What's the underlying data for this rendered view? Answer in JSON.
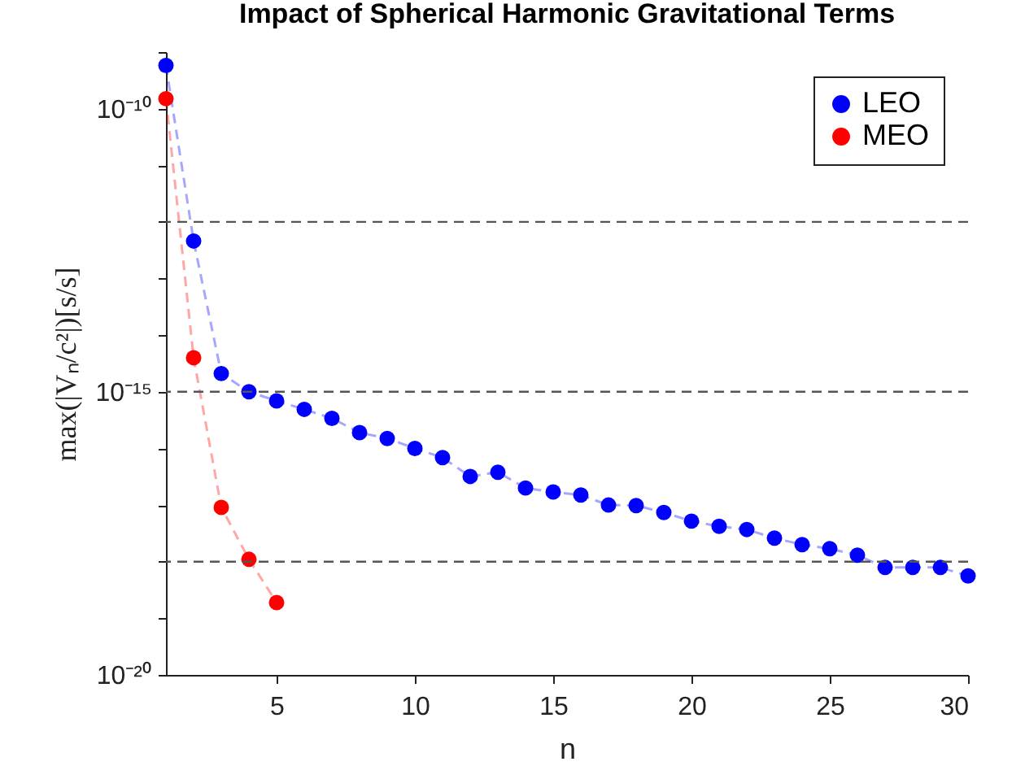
{
  "chart_data": {
    "type": "line",
    "title": "Impact of Spherical Harmonic Gravitational Terms",
    "xlabel": "n",
    "ylabel": "max(|Vₙ/c²|)[s/s]",
    "log": true,
    "marker": "circle",
    "line_style": "dashed",
    "legend": "top right",
    "grid": false,
    "xlim": [
      1,
      30
    ],
    "xticks": [
      5,
      10,
      15,
      20,
      25,
      30
    ],
    "ylim": [
      1e-20,
      1e-09
    ],
    "yticks": [
      {
        "value": 1e-20,
        "label": "10⁻²⁰"
      },
      {
        "value": 1e-19,
        "label": null
      },
      {
        "value": 1e-18,
        "label": null
      },
      {
        "value": 1e-17,
        "label": null
      },
      {
        "value": 1e-16,
        "label": null
      },
      {
        "value": 1e-15,
        "label": "10⁻¹⁵"
      },
      {
        "value": 1e-14,
        "label": null
      },
      {
        "value": 1e-13,
        "label": null
      },
      {
        "value": 1e-12,
        "label": null
      },
      {
        "value": 1e-11,
        "label": null
      },
      {
        "value": 1e-10,
        "label": "10⁻¹⁰"
      },
      {
        "value": 1e-09,
        "label": null
      }
    ],
    "ref_lines": [
      {
        "axis": "y",
        "value": 1e-12,
        "color": "#555555",
        "line_style": "dashed"
      },
      {
        "axis": "y",
        "value": 1e-15,
        "color": "#555555",
        "line_style": "dashed"
      },
      {
        "axis": "y",
        "value": 1e-18,
        "color": "#555555",
        "line_style": "dashed"
      }
    ],
    "series": [
      {
        "name": "LEO",
        "color": "#0000ff",
        "x": [
          1,
          2,
          3,
          4,
          5,
          6,
          7,
          8,
          9,
          10,
          11,
          12,
          13,
          14,
          15,
          16,
          17,
          18,
          19,
          20,
          21,
          22,
          23,
          24,
          25,
          26,
          27,
          28,
          29,
          30
        ],
        "values": [
          5.8e-10,
          4.6e-13,
          2.1e-15,
          1e-15,
          6.9e-16,
          4.9e-16,
          3.4e-16,
          1.9e-16,
          1.5e-16,
          1e-16,
          6.9e-17,
          3.2e-17,
          3.8e-17,
          2e-17,
          1.7e-17,
          1.5e-17,
          1e-17,
          9.8e-18,
          7.4e-18,
          5.2e-18,
          4.2e-18,
          3.7e-18,
          2.6e-18,
          2e-18,
          1.7e-18,
          1.3e-18,
          7.9e-19,
          7.9e-19,
          7.9e-19,
          5.6e-19
        ]
      },
      {
        "name": "MEO",
        "color": "#ff0000",
        "x": [
          1,
          2,
          3,
          4,
          5
        ],
        "values": [
          1.5e-10,
          4e-15,
          9.1e-18,
          1.1e-18,
          1.9e-19
        ]
      }
    ]
  }
}
